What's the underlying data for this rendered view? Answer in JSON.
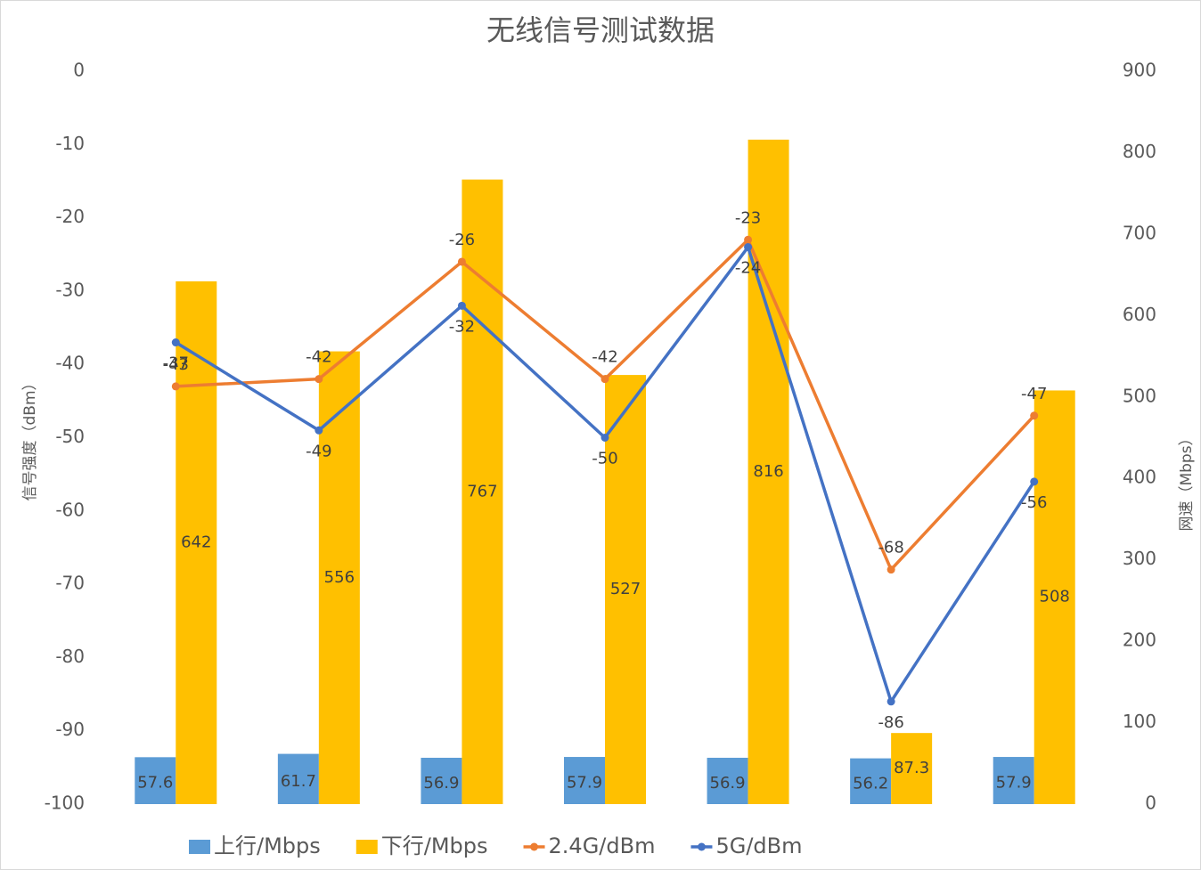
{
  "chart_data": {
    "type": "bar",
    "title": "无线信号测试数据",
    "y_label": "信号强度（dBm）",
    "y2_label": "网速（Mbps）",
    "categories": [
      null,
      null,
      null,
      null,
      null,
      null,
      null
    ],
    "ylim": [
      -100,
      0
    ],
    "yticks": [
      -100,
      -90,
      -80,
      -70,
      -60,
      -50,
      -40,
      -30,
      -20,
      -10,
      0
    ],
    "y2lim": [
      0,
      900
    ],
    "y2ticks": [
      0,
      100,
      200,
      300,
      400,
      500,
      600,
      700,
      800,
      900
    ],
    "legend": "bottom",
    "series": [
      {
        "name": "上行/Mbps",
        "type": "bar",
        "axis": "y2",
        "color": "#5b9bd5",
        "values": [
          57.6,
          61.7,
          56.9,
          57.9,
          56.9,
          56.2,
          57.9
        ]
      },
      {
        "name": "下行/Mbps",
        "type": "bar",
        "axis": "y2",
        "color": "#ffc000",
        "values": [
          642,
          556,
          767,
          527,
          816,
          87.3,
          508
        ]
      },
      {
        "name": "2.4G/dBm",
        "type": "line",
        "color": "#ed7d31",
        "values": [
          -43,
          -42,
          -26,
          -42,
          -23,
          -68,
          -47
        ]
      },
      {
        "name": "5G/dBm",
        "type": "line",
        "color": "#4472c4",
        "values": [
          -37,
          -49,
          -32,
          -50,
          -24,
          -86,
          -56
        ]
      }
    ]
  }
}
